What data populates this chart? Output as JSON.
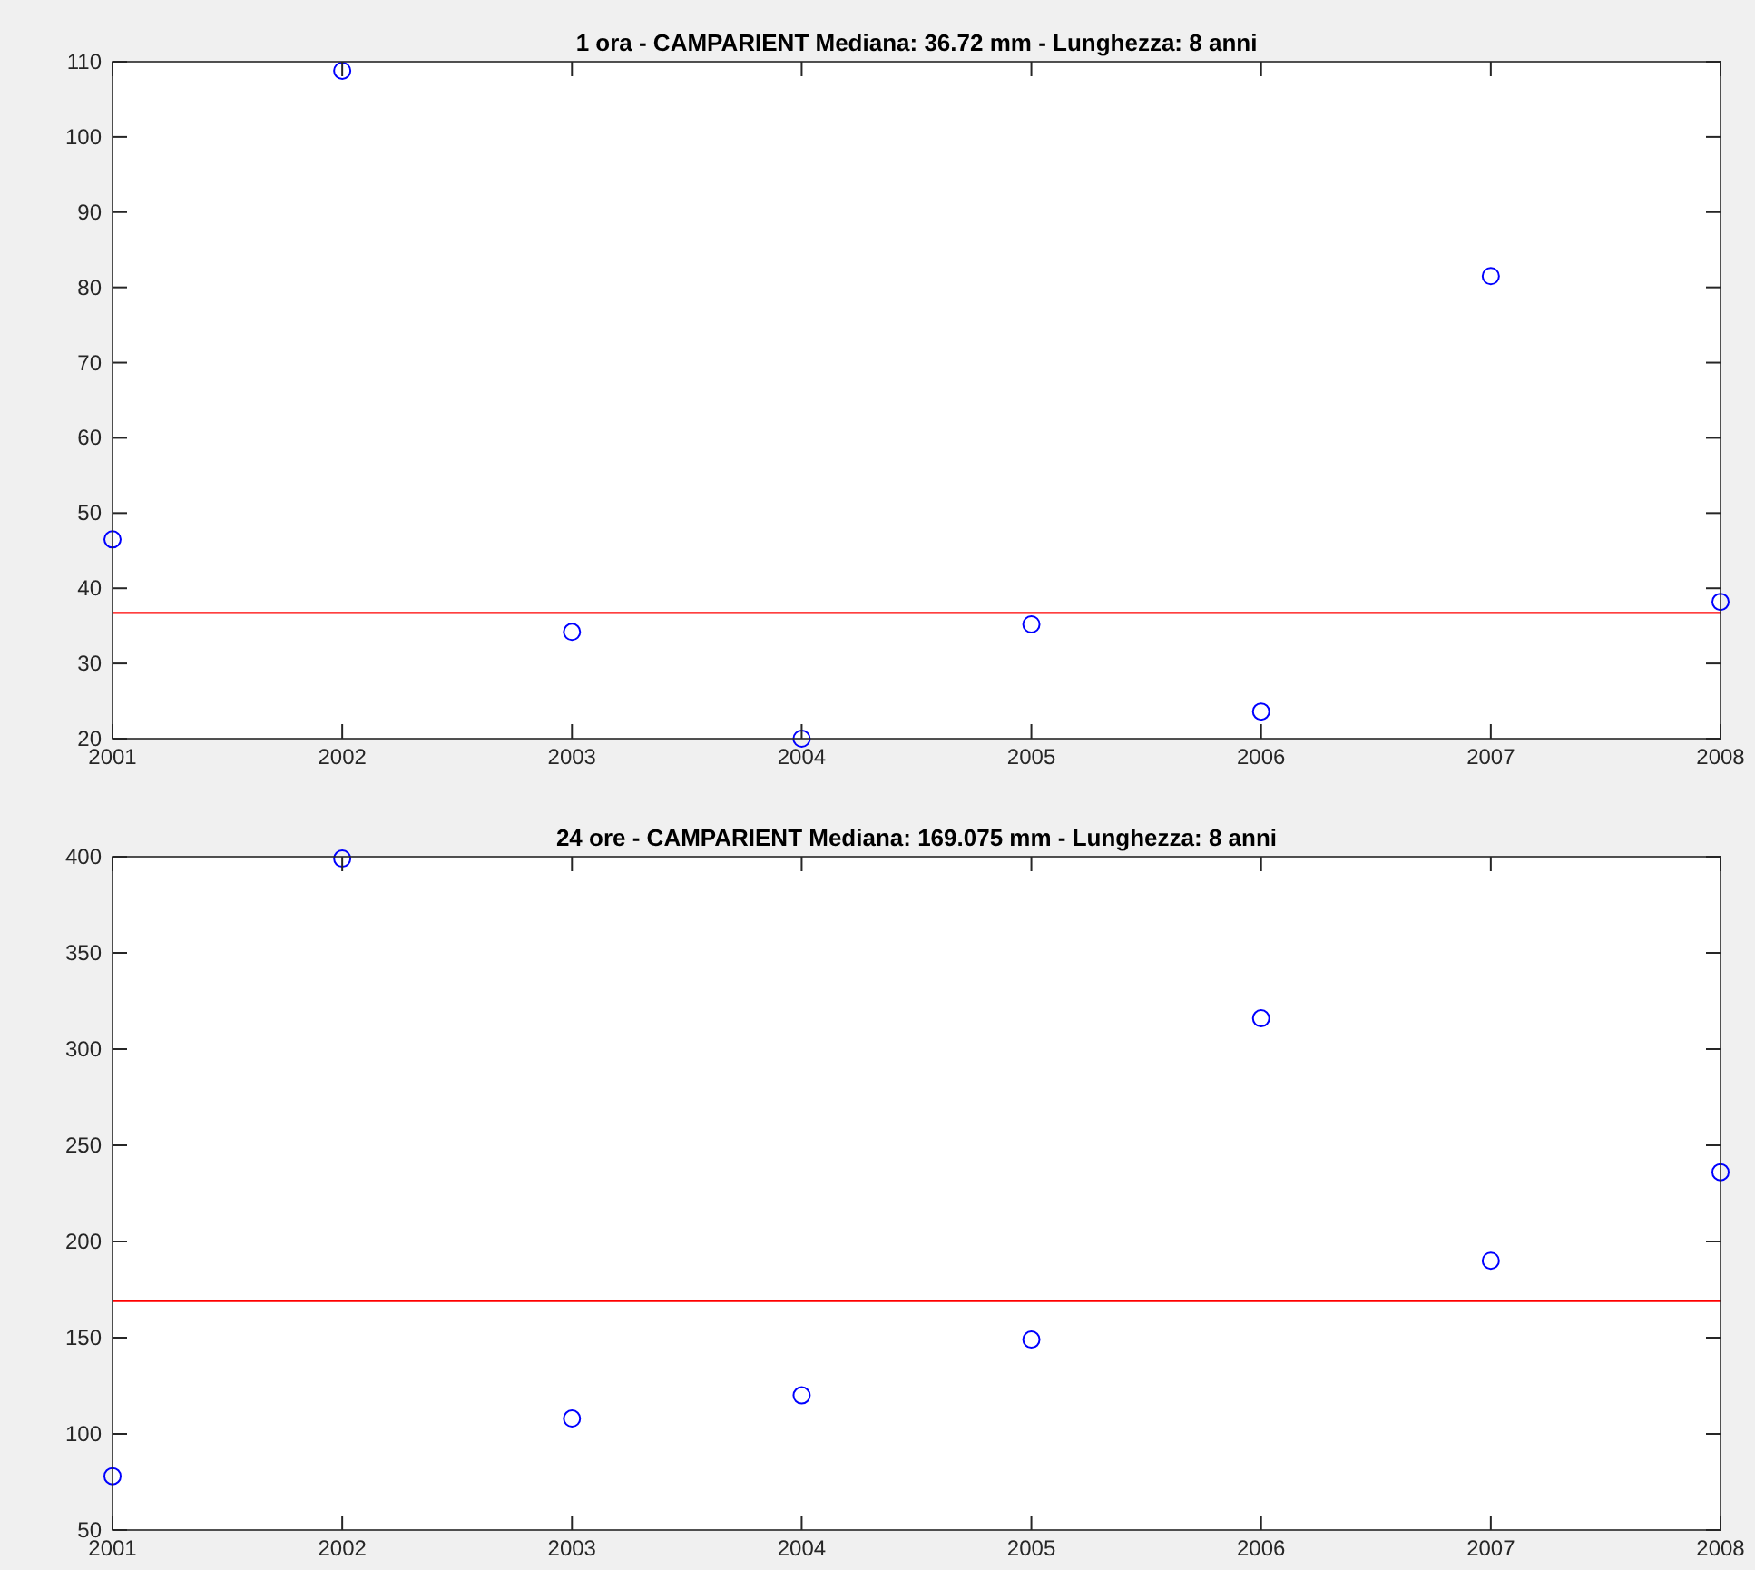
{
  "chart_data": [
    {
      "type": "scatter",
      "title": "1 ora - CAMPARIENT Mediana: 36.72 mm - Lunghezza: 8 anni",
      "x": [
        2001,
        2002,
        2003,
        2004,
        2005,
        2006,
        2007,
        2008
      ],
      "series": [
        {
          "color": "#0000ff",
          "values": [
            46.5,
            108.8,
            34.2,
            20,
            35.2,
            23.6,
            81.5,
            38.2
          ]
        }
      ],
      "marker": "circle",
      "xlim": [
        2001,
        2008
      ],
      "xticks": [
        2001,
        2002,
        2003,
        2004,
        2005,
        2006,
        2007,
        2008
      ],
      "ylim": [
        20,
        110
      ],
      "yticks": [
        20,
        30,
        40,
        50,
        60,
        70,
        80,
        90,
        100,
        110
      ],
      "ref_lines": [
        {
          "axis": "y",
          "value": 36.72,
          "color": "#ff0000"
        }
      ]
    },
    {
      "type": "scatter",
      "title": "24 ore - CAMPARIENT Mediana: 169.075 mm - Lunghezza: 8 anni",
      "x": [
        2001,
        2002,
        2003,
        2004,
        2005,
        2006,
        2007,
        2008
      ],
      "series": [
        {
          "color": "#0000ff",
          "values": [
            78,
            399,
            108,
            120,
            149,
            316,
            190,
            236
          ]
        }
      ],
      "marker": "circle",
      "xlim": [
        2001,
        2008
      ],
      "xticks": [
        2001,
        2002,
        2003,
        2004,
        2005,
        2006,
        2007,
        2008
      ],
      "ylim": [
        50,
        400
      ],
      "yticks": [
        50,
        100,
        150,
        200,
        250,
        300,
        350,
        400
      ],
      "ref_lines": [
        {
          "axis": "y",
          "value": 169.075,
          "color": "#ff0000"
        }
      ]
    }
  ]
}
